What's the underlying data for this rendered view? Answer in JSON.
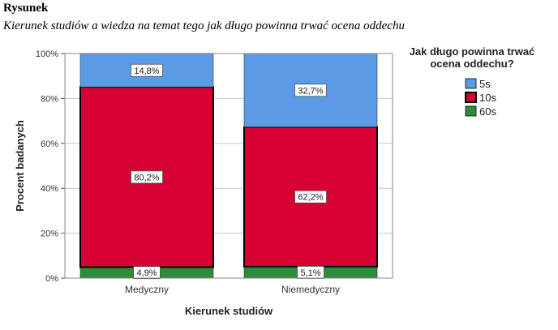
{
  "figure": {
    "label": "Rysunek",
    "caption": "Kierunek studiów a wiedza na temat tego jak długo powinna trwać ocena oddechu"
  },
  "chart_data": {
    "type": "bar",
    "stacked": true,
    "categories": [
      "Medyczny",
      "Niemedyczny"
    ],
    "series": [
      {
        "name": "60s",
        "color": "#2e8b3a",
        "values": [
          4.9,
          5.1
        ]
      },
      {
        "name": "10s",
        "color": "#d60032",
        "values": [
          80.2,
          62.2
        ]
      },
      {
        "name": "5s",
        "color": "#5b9be6",
        "values": [
          14.8,
          32.7
        ]
      }
    ],
    "data_labels": {
      "60s": [
        "4,9%",
        "5,1%"
      ],
      "10s": [
        "80,2%",
        "62,2%"
      ],
      "5s": [
        "14,8%",
        "32,7%"
      ]
    },
    "y_ticks": [
      {
        "value": 0,
        "label": "0%"
      },
      {
        "value": 20,
        "label": "20%"
      },
      {
        "value": 40,
        "label": "40%"
      },
      {
        "value": 60,
        "label": "60%"
      },
      {
        "value": 80,
        "label": "80%"
      },
      {
        "value": 100,
        "label": "100%"
      }
    ],
    "ylim": [
      0,
      100
    ],
    "xlabel": "Kierunek studiów",
    "ylabel": "Procent badanych",
    "grid": true,
    "legend": {
      "title_lines": [
        "Jak długo powinna trwać",
        "ocena oddechu?"
      ],
      "order": [
        "5s",
        "10s",
        "60s"
      ],
      "placement": "right"
    },
    "highlighted_series": "10s"
  }
}
